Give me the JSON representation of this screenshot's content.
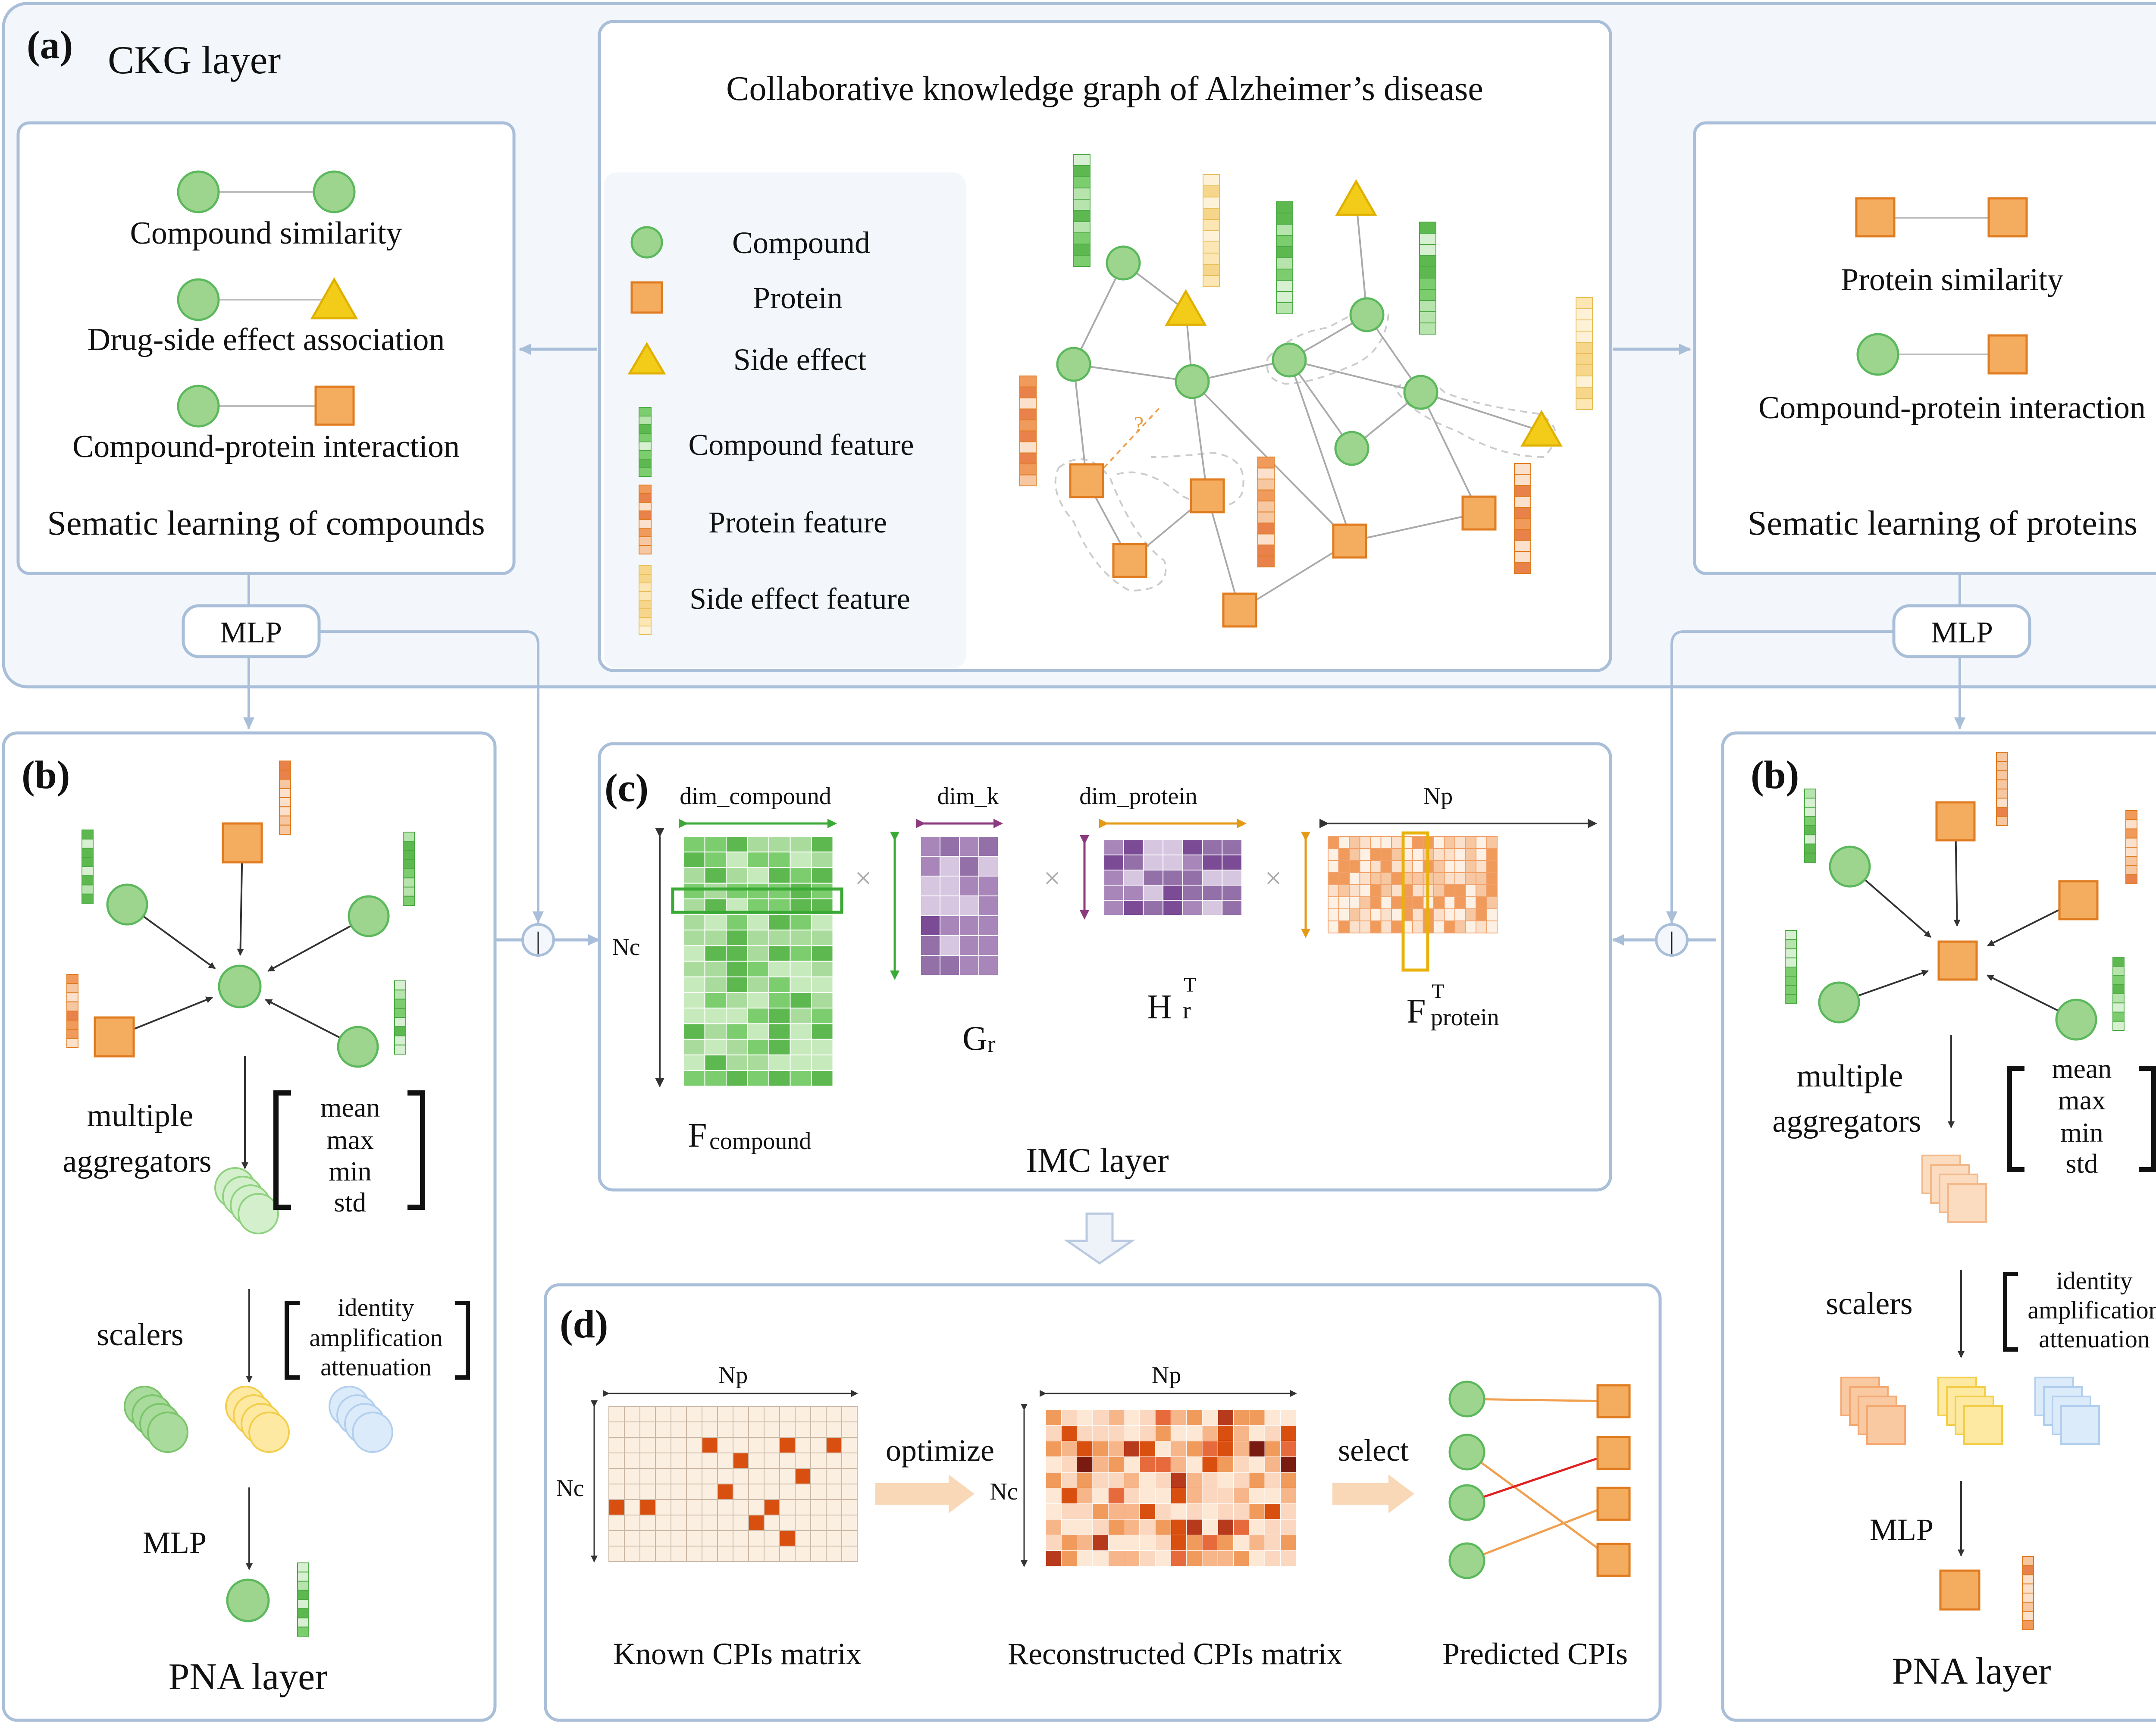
{
  "colors": {
    "compound": "#9dd58f",
    "compound_stroke": "#5cb85c",
    "protein": "#f4ad5f",
    "protein_stroke": "#e07b1f",
    "side_effect": "#f3cc1a",
    "panel_bg": "#f3f6fb",
    "panel_border": "#a9bed8",
    "purple": "#8a5aa0",
    "link_red": "#e02020"
  },
  "panel_a": {
    "label": "(a)",
    "title": "CKG layer",
    "ckg_title": "Collaborative knowledge graph of Alzheimer’s disease",
    "compounds_box": {
      "similarity": "Compound similarity",
      "side_effect_assoc": "Drug-side effect association",
      "cpi": "Compound-protein interaction",
      "caption": "Sematic learning of compounds"
    },
    "proteins_box": {
      "similarity": "Protein similarity",
      "cpi": "Compound-protein interaction",
      "caption": "Sematic learning of proteins"
    },
    "legend": {
      "compound": "Compound",
      "protein": "Protein",
      "side_effect": "Side effect",
      "compound_feature": "Compound feature",
      "protein_feature": "Protein feature",
      "side_effect_feature": "Side effect feature"
    },
    "unknown_mark": "?",
    "mlp_left": "MLP",
    "mlp_right": "MLP"
  },
  "panel_b_left": {
    "label": "(b)",
    "aggregators": [
      "multiple",
      "aggregators"
    ],
    "agg_list": [
      "mean",
      "max",
      "min",
      "std"
    ],
    "scalers": "scalers",
    "scaler_list": [
      "identity",
      "amplification",
      "attenuation"
    ],
    "mlp": "MLP",
    "caption": "PNA layer"
  },
  "panel_b_right": {
    "label": "(b)",
    "aggregators": [
      "multiple",
      "aggregators"
    ],
    "agg_list": [
      "mean",
      "max",
      "min",
      "std"
    ],
    "scalers": "scalers",
    "scaler_list": [
      "identity",
      "amplification",
      "attenuation"
    ],
    "mlp": "MLP",
    "caption": "PNA layer"
  },
  "panel_c": {
    "label": "(c)",
    "dim_compound": "dim_compound",
    "dim_k": "dim_k",
    "dim_protein": "dim_protein",
    "np": "Np",
    "nc": "Nc",
    "times": "×",
    "f_compound": "F",
    "f_compound_sub": "compound",
    "g": "G",
    "g_sub": "r",
    "h": "H",
    "h_sub": "r",
    "h_sup": "T",
    "f_protein": "F",
    "f_protein_sub": "protein",
    "f_protein_sup": "T",
    "caption": "IMC layer",
    "concat": "|"
  },
  "panel_d": {
    "label": "(d)",
    "np_left": "Np",
    "nc_left": "Nc",
    "np_right": "Np",
    "nc_right": "Nc",
    "optimize": "optimize",
    "select": "select",
    "known": "Known CPIs matrix",
    "reconstructed": "Reconstructed CPIs matrix",
    "predicted": "Predicted CPIs"
  }
}
